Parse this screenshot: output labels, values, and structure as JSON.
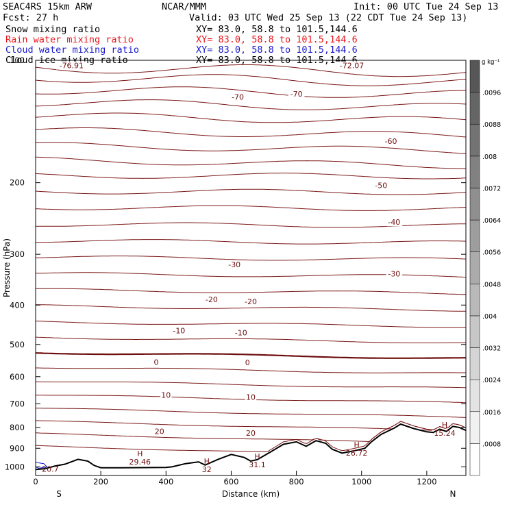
{
  "header": {
    "model": "SEAC4RS 15km ARW",
    "org": "NCAR/MMM",
    "init": "Init: 00 UTC Tue 24 Sep 13",
    "fcst": "Fcst:   27 h",
    "valid": "Valid: 03 UTC Wed 25 Sep 13 (22 CDT Tue 24 Sep 13)",
    "fields": [
      {
        "name": "Snow mixing ratio",
        "xy": "XY=  83.0, 58.8 to 101.5,144.6",
        "color": "#000000"
      },
      {
        "name": "Rain water mixing ratio",
        "xy": "XY=  83.0, 58.8 to 101.5,144.6",
        "color": "#e8141a"
      },
      {
        "name": "Cloud water mixing ratio",
        "xy": "XY=  83.0, 58.8 to 101.5,144.6",
        "color": "#1a1acc"
      },
      {
        "name": "Cloud ice mixing ratio",
        "xy": "XY=  83.0, 58.8 to 101.5,144.6",
        "color": "#000000"
      }
    ]
  },
  "chart_data": {
    "type": "contour cross-section",
    "xlabel": "Distance (km)",
    "ylabel": "Pressure (hPa)",
    "xlim": [
      0,
      1320
    ],
    "ylim": [
      1050,
      100
    ],
    "y_log": true,
    "xticks": [
      0,
      200,
      400,
      600,
      800,
      1000,
      1200
    ],
    "yticks": [
      100,
      200,
      300,
      400,
      500,
      600,
      700,
      800,
      900,
      1000
    ],
    "x_end_labels": {
      "left": "S",
      "right": "N"
    },
    "contour_color": "#7a1616",
    "zero_line_color": "#6e0e0e",
    "terrain_color": "#000000",
    "temperature_contour_labels": [
      {
        "text": "-76.91",
        "x": 110,
        "p": 103
      },
      {
        "text": "-70",
        "x": 620,
        "p": 123
      },
      {
        "text": "-70",
        "x": 800,
        "p": 121
      },
      {
        "text": "-72.07",
        "x": 970,
        "p": 103
      },
      {
        "text": "-60",
        "x": 1090,
        "p": 158
      },
      {
        "text": "-50",
        "x": 1060,
        "p": 203
      },
      {
        "text": "-40",
        "x": 1100,
        "p": 250
      },
      {
        "text": "-30",
        "x": 610,
        "p": 318
      },
      {
        "text": "-30",
        "x": 1100,
        "p": 335
      },
      {
        "text": "-20",
        "x": 540,
        "p": 387
      },
      {
        "text": "-20",
        "x": 660,
        "p": 392
      },
      {
        "text": "-10",
        "x": 440,
        "p": 462
      },
      {
        "text": "-10",
        "x": 630,
        "p": 468
      },
      {
        "text": "0",
        "x": 370,
        "p": 552
      },
      {
        "text": "0",
        "x": 650,
        "p": 553
      },
      {
        "text": "10",
        "x": 400,
        "p": 665
      },
      {
        "text": "10",
        "x": 660,
        "p": 673
      },
      {
        "text": "20",
        "x": 380,
        "p": 818
      },
      {
        "text": "20",
        "x": 660,
        "p": 826
      }
    ],
    "extrema": [
      {
        "text": "H",
        "value": "29.46",
        "x": 320,
        "p": 950
      },
      {
        "text": "H",
        "value": "32",
        "x": 525,
        "p": 990
      },
      {
        "text": "H",
        "value": "31.1",
        "x": 680,
        "p": 965
      },
      {
        "text": "H",
        "value": "26.72",
        "x": 985,
        "p": 902
      },
      {
        "text": "H",
        "value": "15.24",
        "x": 1255,
        "p": 806
      },
      {
        "text": "",
        "value": "20.7",
        "x": 45,
        "p": 988
      }
    ],
    "terrain": {
      "x": [
        0,
        30,
        60,
        90,
        130,
        160,
        180,
        200,
        260,
        400,
        420,
        460,
        500,
        520,
        560,
        600,
        640,
        660,
        680,
        720,
        760,
        800,
        830,
        860,
        890,
        910,
        940,
        980,
        1010,
        1030,
        1060,
        1100,
        1120,
        1160,
        1200,
        1220,
        1240,
        1260,
        1280,
        1300,
        1310,
        1320
      ],
      "p": [
        1015,
        1010,
        995,
        985,
        958,
        968,
        992,
        1005,
        1005,
        1003,
        999,
        982,
        972,
        990,
        958,
        932,
        948,
        968,
        960,
        920,
        880,
        868,
        890,
        862,
        875,
        905,
        925,
        912,
        900,
        868,
        832,
        803,
        785,
        805,
        820,
        823,
        808,
        818,
        795,
        800,
        807,
        813
      ]
    },
    "colorbar": {
      "unit": "g kg⁻¹",
      "ticks": [
        ".0008",
        ".0016",
        ".0024",
        ".0032",
        ".004",
        ".0048",
        ".0056",
        ".0064",
        ".0072",
        ".008",
        ".0088",
        ".0096"
      ]
    }
  }
}
